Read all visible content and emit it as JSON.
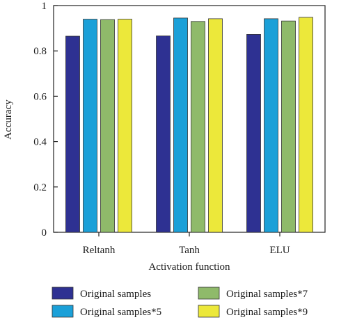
{
  "chart_data": {
    "type": "bar",
    "xlabel": "Activation function",
    "ylabel": "Accuracy",
    "categories": [
      "Reltanh",
      "Tanh",
      "ELU"
    ],
    "ylim": [
      0,
      1
    ],
    "yticks": [
      "0",
      "0.2",
      "0.4",
      "0.6",
      "0.8",
      "1"
    ],
    "grid": false,
    "legend_position": "bottom",
    "series": [
      {
        "name": "Original samples",
        "color": "#2e3192",
        "values": [
          0.865,
          0.866,
          0.873
        ]
      },
      {
        "name": "Original samples*5",
        "color": "#1ba0d8",
        "values": [
          0.94,
          0.945,
          0.942
        ]
      },
      {
        "name": "Original samples*7",
        "color": "#8fba6a",
        "values": [
          0.938,
          0.93,
          0.932
        ]
      },
      {
        "name": "Original samples*9",
        "color": "#ece83a",
        "values": [
          0.94,
          0.942,
          0.948
        ]
      }
    ]
  }
}
